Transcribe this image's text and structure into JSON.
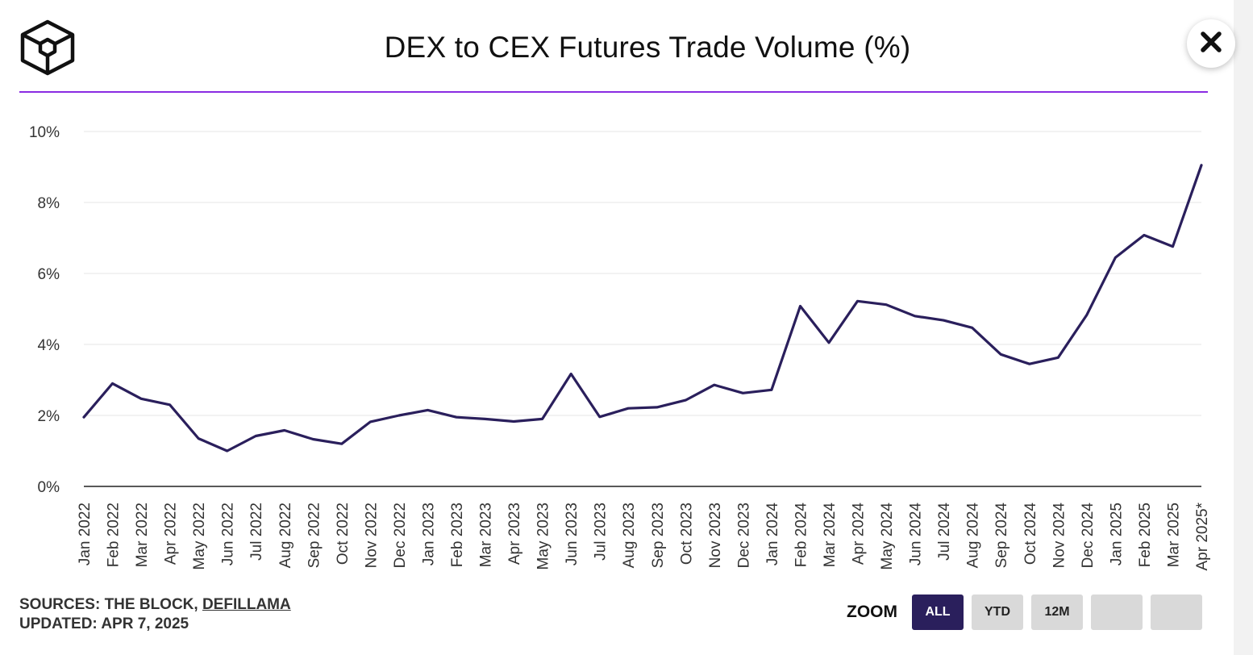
{
  "header": {
    "title": "DEX to CEX Futures Trade Volume (%)"
  },
  "footer": {
    "sources_prefix": "SOURCES: THE BLOCK, ",
    "sources_link": "DEFILLAMA",
    "updated": "UPDATED: APR 7, 2025"
  },
  "zoom": {
    "label": "ZOOM",
    "buttons": [
      {
        "label": "ALL",
        "active": true
      },
      {
        "label": "YTD",
        "active": false
      },
      {
        "label": "12M",
        "active": false
      },
      {
        "label": "",
        "active": false
      },
      {
        "label": "",
        "active": false
      }
    ]
  },
  "colors": {
    "line": "#2a1f5c",
    "accent_rule": "#8a2be2",
    "active_zoom": "#2a1f5c"
  },
  "chart_data": {
    "type": "line",
    "title": "DEX to CEX Futures Trade Volume (%)",
    "xlabel": "",
    "ylabel": "",
    "ylim": [
      0,
      10
    ],
    "yticks": [
      "0%",
      "2%",
      "4%",
      "6%",
      "8%",
      "10%"
    ],
    "grid": true,
    "categories": [
      "Jan 2022",
      "Feb 2022",
      "Mar 2022",
      "Apr 2022",
      "May 2022",
      "Jun 2022",
      "Jul 2022",
      "Aug 2022",
      "Sep 2022",
      "Oct 2022",
      "Nov 2022",
      "Dec 2022",
      "Jan 2023",
      "Feb 2023",
      "Mar 2023",
      "Apr 2023",
      "May 2023",
      "Jun 2023",
      "Jul 2023",
      "Aug 2023",
      "Sep 2023",
      "Oct 2023",
      "Nov 2023",
      "Dec 2023",
      "Jan 2024",
      "Feb 2024",
      "Mar 2024",
      "Apr 2024",
      "May 2024",
      "Jun 2024",
      "Jul 2024",
      "Aug 2024",
      "Sep 2024",
      "Oct 2024",
      "Nov 2024",
      "Dec 2024",
      "Jan 2025",
      "Feb 2025",
      "Mar 2025",
      "Apr 2025*"
    ],
    "series": [
      {
        "values": [
          1.95,
          2.9,
          2.47,
          2.3,
          1.35,
          1.0,
          1.42,
          1.58,
          1.33,
          1.2,
          1.82,
          2.0,
          2.15,
          1.95,
          1.9,
          1.83,
          1.9,
          3.17,
          1.96,
          2.2,
          2.23,
          2.43,
          2.86,
          2.63,
          2.72,
          5.08,
          4.05,
          5.22,
          5.12,
          4.8,
          4.68,
          4.47,
          3.72,
          3.45,
          3.63,
          4.83,
          6.45,
          7.08,
          6.76,
          9.05
        ]
      }
    ]
  }
}
